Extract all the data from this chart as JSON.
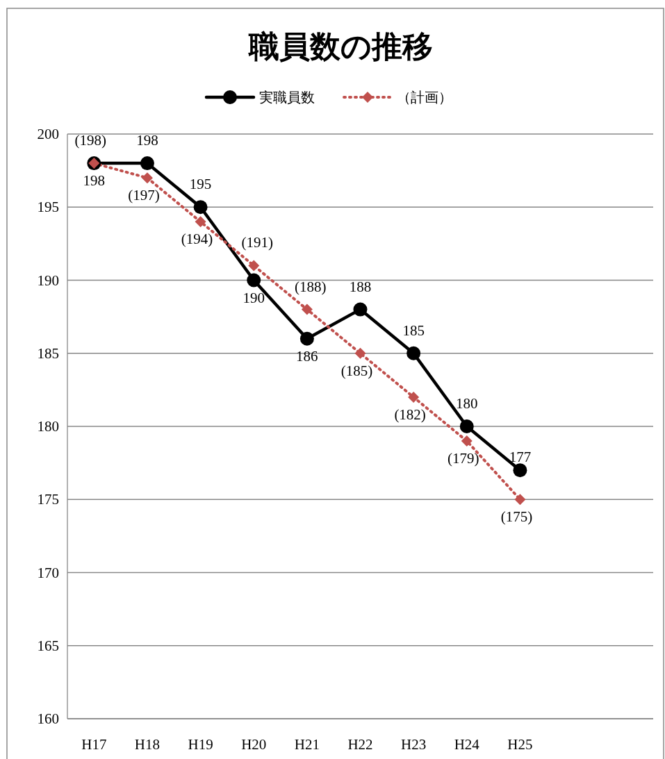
{
  "chart_data": {
    "type": "line",
    "title": "職員数の推移",
    "categories": [
      "H17",
      "H18",
      "H19",
      "H20",
      "H21",
      "H22",
      "H23",
      "H24",
      "H25",
      null,
      null
    ],
    "series": [
      {
        "name": "実職員数",
        "color": "#000000",
        "marker": "circle",
        "line_style": "solid",
        "values": [
          198,
          198,
          195,
          190,
          186,
          188,
          185,
          180,
          177,
          null,
          null
        ]
      },
      {
        "name": "（計画）",
        "color": "#c0504d",
        "marker": "diamond",
        "line_style": "dotted",
        "values": [
          198,
          197,
          194,
          191,
          188,
          185,
          182,
          179,
          175,
          null,
          null
        ],
        "value_labels": [
          "(198)",
          "(197)",
          "(194)",
          "(191)",
          "(188)",
          "(185)",
          "(182)",
          "(179)",
          "(175)",
          null,
          null
        ]
      }
    ],
    "ylim": [
      160,
      200
    ],
    "yticks": [
      160,
      165,
      170,
      175,
      180,
      185,
      190,
      195,
      200
    ],
    "grid": "y",
    "legend": "top",
    "data_labels": true
  }
}
